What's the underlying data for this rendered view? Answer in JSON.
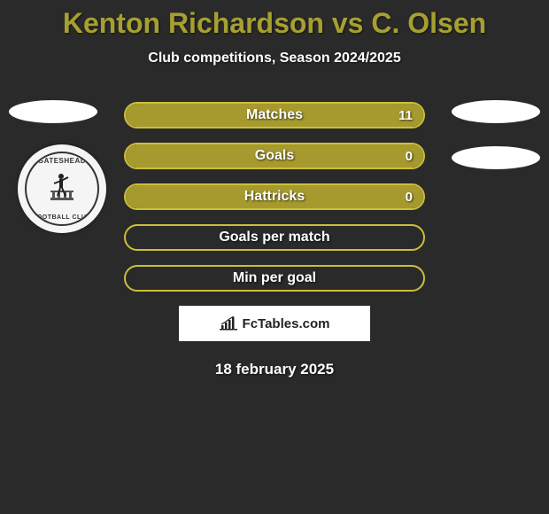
{
  "title": "Kenton Richardson vs C. Olsen",
  "subtitle": "Club competitions, Season 2024/2025",
  "date": "18 february 2025",
  "attribution": "FcTables.com",
  "badge": {
    "top_text": "GATESHEAD",
    "bottom_text": "FOOTBALL CLUB"
  },
  "bar_style": {
    "border_color": "#cbbf3a",
    "fill_color": "#a69a2e",
    "empty_color": "transparent",
    "height": 30,
    "radius": 15,
    "label_fontsize": 16,
    "label_color": "#ffffff"
  },
  "bars": [
    {
      "label": "Matches",
      "value": "11",
      "fill_pct": 100
    },
    {
      "label": "Goals",
      "value": "0",
      "fill_pct": 100
    },
    {
      "label": "Hattricks",
      "value": "0",
      "fill_pct": 100
    },
    {
      "label": "Goals per match",
      "value": "",
      "fill_pct": 0
    },
    {
      "label": "Min per goal",
      "value": "",
      "fill_pct": 0
    }
  ],
  "background_color": "#2a2a2a",
  "title_color": "#a6a030"
}
